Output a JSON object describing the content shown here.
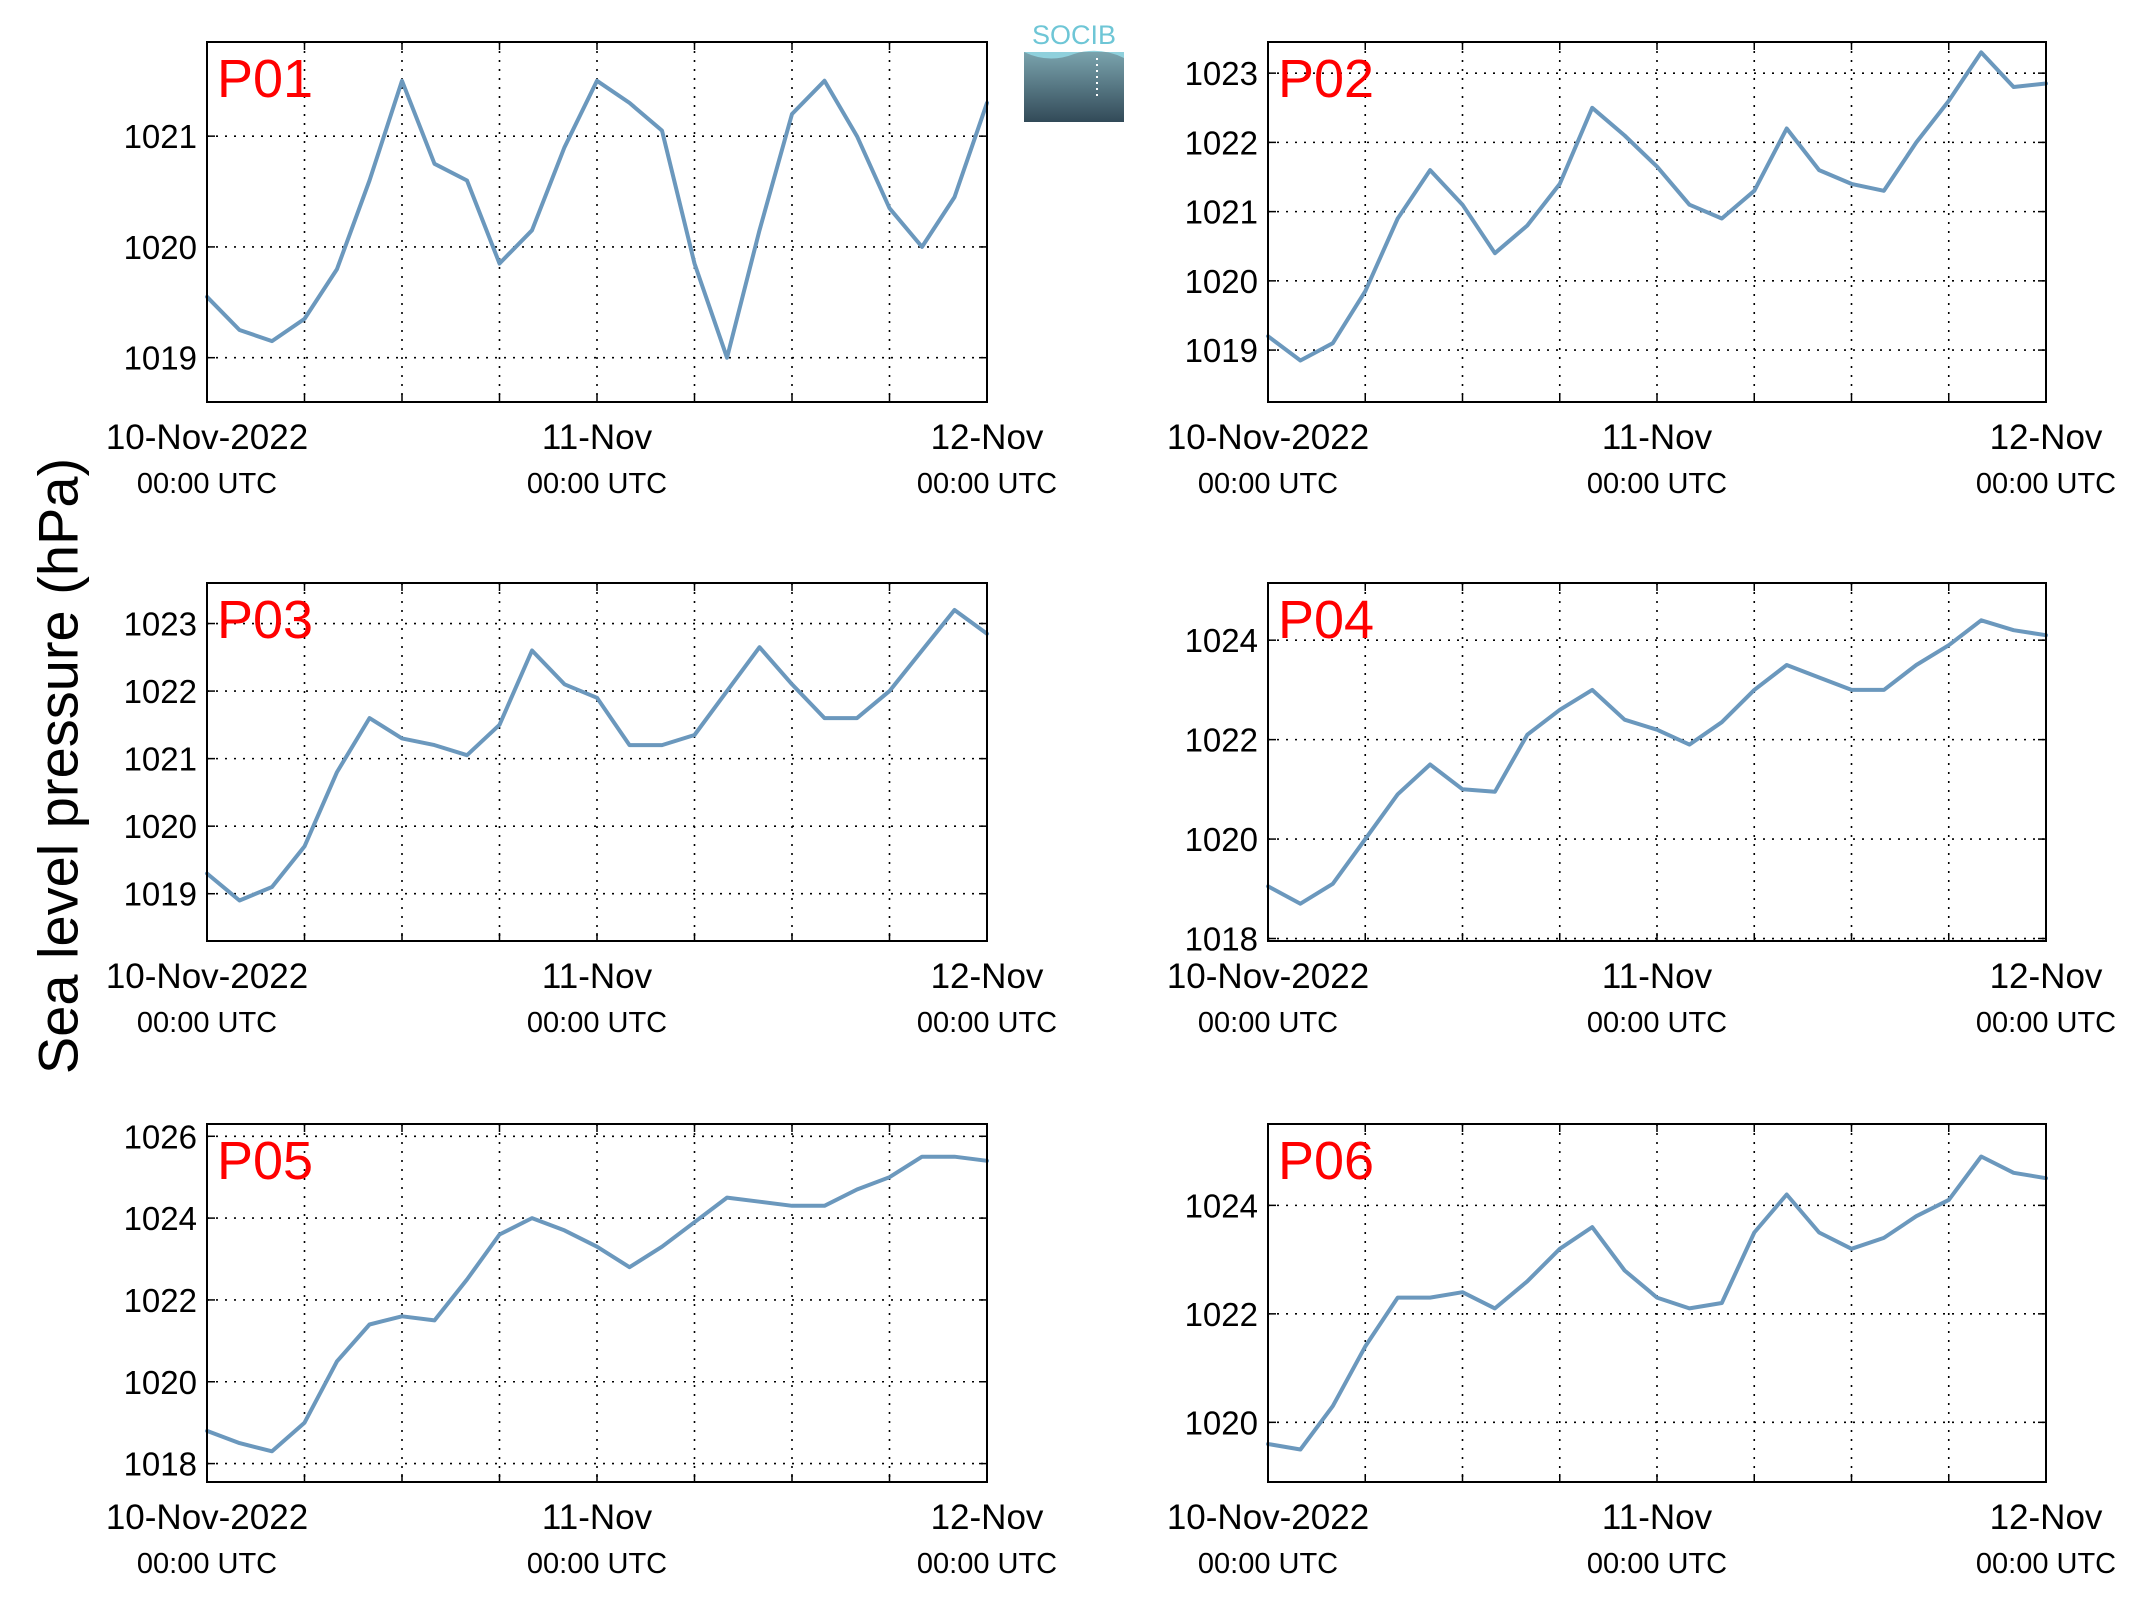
{
  "figure": {
    "ylabel": "Sea level pressure (hPa)",
    "logo_text": "SOCIB",
    "line_color": "#6b98bd",
    "label_color": "#ff0000"
  },
  "chart_data": [
    {
      "type": "line",
      "name": "P01",
      "x_range": [
        "2022-11-10T00:00Z",
        "2022-11-12T00:00Z"
      ],
      "xticks": [
        {
          "label": "10-Nov-2022",
          "sublabel": "00:00 UTC"
        },
        {
          "label": "11-Nov",
          "sublabel": "00:00 UTC"
        },
        {
          "label": "12-Nov",
          "sublabel": "00:00 UTC"
        }
      ],
      "ylim": [
        1018.6,
        1021.85
      ],
      "yticks": [
        1019,
        1020,
        1021
      ],
      "grid": true,
      "x": [
        0,
        2,
        4,
        6,
        8,
        10,
        12,
        14,
        16,
        18,
        20,
        22,
        24,
        26,
        28,
        30,
        32,
        34,
        36,
        38,
        40,
        42,
        44,
        46,
        48
      ],
      "y": [
        1019.55,
        1019.25,
        1019.15,
        1019.35,
        1019.8,
        1020.6,
        1021.5,
        1020.75,
        1020.6,
        1019.85,
        1020.15,
        1020.9,
        1021.5,
        1021.3,
        1021.05,
        1019.85,
        1019.0,
        1020.15,
        1021.2,
        1021.5,
        1021.0,
        1020.35,
        1020.0,
        1020.45,
        1021.3
      ]
    },
    {
      "type": "line",
      "name": "P02",
      "x_range": [
        "2022-11-10T00:00Z",
        "2022-11-12T00:00Z"
      ],
      "xticks": [
        {
          "label": "10-Nov-2022",
          "sublabel": "00:00 UTC"
        },
        {
          "label": "11-Nov",
          "sublabel": "00:00 UTC"
        },
        {
          "label": "12-Nov",
          "sublabel": "00:00 UTC"
        }
      ],
      "ylim": [
        1018.25,
        1023.45
      ],
      "yticks": [
        1019,
        1020,
        1021,
        1022,
        1023
      ],
      "grid": true,
      "x": [
        0,
        2,
        4,
        6,
        8,
        10,
        12,
        14,
        16,
        18,
        20,
        22,
        24,
        26,
        28,
        30,
        32,
        34,
        36,
        38,
        40,
        42,
        44,
        46,
        48
      ],
      "y": [
        1019.2,
        1018.85,
        1019.1,
        1019.85,
        1020.9,
        1021.6,
        1021.1,
        1020.4,
        1020.8,
        1021.4,
        1022.5,
        1022.1,
        1021.65,
        1021.1,
        1020.9,
        1021.3,
        1022.2,
        1021.6,
        1021.4,
        1021.3,
        1022.0,
        1022.6,
        1023.3,
        1022.8,
        1022.85
      ]
    },
    {
      "type": "line",
      "name": "P03",
      "x_range": [
        "2022-11-10T00:00Z",
        "2022-11-12T00:00Z"
      ],
      "xticks": [
        {
          "label": "10-Nov-2022",
          "sublabel": "00:00 UTC"
        },
        {
          "label": "11-Nov",
          "sublabel": "00:00 UTC"
        },
        {
          "label": "12-Nov",
          "sublabel": "00:00 UTC"
        }
      ],
      "ylim": [
        1018.3,
        1023.6
      ],
      "yticks": [
        1019,
        1020,
        1021,
        1022,
        1023
      ],
      "grid": true,
      "x": [
        0,
        2,
        4,
        6,
        8,
        10,
        12,
        14,
        16,
        18,
        20,
        22,
        24,
        26,
        28,
        30,
        32,
        34,
        36,
        38,
        40,
        42,
        44,
        46,
        48
      ],
      "y": [
        1019.3,
        1018.9,
        1019.1,
        1019.7,
        1020.8,
        1021.6,
        1021.3,
        1021.2,
        1021.05,
        1021.5,
        1022.6,
        1022.1,
        1021.9,
        1021.2,
        1021.2,
        1021.35,
        1022.0,
        1022.65,
        1022.1,
        1021.6,
        1021.6,
        1022.0,
        1022.6,
        1023.2,
        1022.85
      ]
    },
    {
      "type": "line",
      "name": "P04",
      "x_range": [
        "2022-11-10T00:00Z",
        "2022-11-12T00:00Z"
      ],
      "xticks": [
        {
          "label": "10-Nov-2022",
          "sublabel": "00:00 UTC"
        },
        {
          "label": "11-Nov",
          "sublabel": "00:00 UTC"
        },
        {
          "label": "12-Nov",
          "sublabel": "00:00 UTC"
        }
      ],
      "ylim": [
        1017.95,
        1025.15
      ],
      "yticks": [
        1018,
        1020,
        1022,
        1024
      ],
      "grid": true,
      "x": [
        0,
        2,
        4,
        6,
        8,
        10,
        12,
        14,
        16,
        18,
        20,
        22,
        24,
        26,
        28,
        30,
        32,
        34,
        36,
        38,
        40,
        42,
        44,
        46,
        48
      ],
      "y": [
        1019.05,
        1018.7,
        1019.1,
        1020.0,
        1020.9,
        1021.5,
        1021.0,
        1020.95,
        1022.1,
        1022.6,
        1023.0,
        1022.4,
        1022.2,
        1021.9,
        1022.35,
        1023.0,
        1023.5,
        1023.25,
        1023.0,
        1023.0,
        1023.5,
        1023.9,
        1024.4,
        1024.2,
        1024.1
      ]
    },
    {
      "type": "line",
      "name": "P05",
      "x_range": [
        "2022-11-10T00:00Z",
        "2022-11-12T00:00Z"
      ],
      "xticks": [
        {
          "label": "10-Nov-2022",
          "sublabel": "00:00 UTC"
        },
        {
          "label": "11-Nov",
          "sublabel": "00:00 UTC"
        },
        {
          "label": "12-Nov",
          "sublabel": "00:00 UTC"
        }
      ],
      "ylim": [
        1017.55,
        1026.3
      ],
      "yticks": [
        1018,
        1020,
        1022,
        1024,
        1026
      ],
      "grid": true,
      "x": [
        0,
        2,
        4,
        6,
        8,
        10,
        12,
        14,
        16,
        18,
        20,
        22,
        24,
        26,
        28,
        30,
        32,
        34,
        36,
        38,
        40,
        42,
        44,
        46,
        48
      ],
      "y": [
        1018.8,
        1018.5,
        1018.3,
        1019.0,
        1020.5,
        1021.4,
        1021.6,
        1021.5,
        1022.5,
        1023.6,
        1024.0,
        1023.7,
        1023.3,
        1022.8,
        1023.3,
        1023.9,
        1024.5,
        1024.4,
        1024.3,
        1024.3,
        1024.7,
        1025.0,
        1025.5,
        1025.5,
        1025.4
      ]
    },
    {
      "type": "line",
      "name": "P06",
      "x_range": [
        "2022-11-10T00:00Z",
        "2022-11-12T00:00Z"
      ],
      "xticks": [
        {
          "label": "10-Nov-2022",
          "sublabel": "00:00 UTC"
        },
        {
          "label": "11-Nov",
          "sublabel": "00:00 UTC"
        },
        {
          "label": "12-Nov",
          "sublabel": "00:00 UTC"
        }
      ],
      "ylim": [
        1018.9,
        1025.5
      ],
      "yticks": [
        1020,
        1022,
        1024
      ],
      "grid": true,
      "x": [
        0,
        2,
        4,
        6,
        8,
        10,
        12,
        14,
        16,
        18,
        20,
        22,
        24,
        26,
        28,
        30,
        32,
        34,
        36,
        38,
        40,
        42,
        44,
        46,
        48
      ],
      "y": [
        1019.6,
        1019.5,
        1020.3,
        1021.4,
        1022.3,
        1022.3,
        1022.4,
        1022.1,
        1022.6,
        1023.2,
        1023.6,
        1022.8,
        1022.3,
        1022.1,
        1022.2,
        1023.5,
        1024.2,
        1023.5,
        1023.2,
        1023.4,
        1023.8,
        1024.1,
        1024.9,
        1024.6,
        1024.5
      ]
    }
  ]
}
